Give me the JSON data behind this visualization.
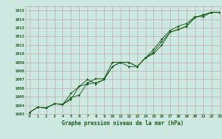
{
  "xlabel": "Graphe pression niveau de la mer (hPa)",
  "ylim": [
    1003,
    1015.5
  ],
  "xlim": [
    -0.5,
    23
  ],
  "yticks": [
    1003,
    1004,
    1005,
    1006,
    1007,
    1008,
    1009,
    1010,
    1011,
    1012,
    1013,
    1014,
    1015
  ],
  "xticks": [
    0,
    1,
    2,
    3,
    4,
    5,
    6,
    7,
    8,
    9,
    10,
    11,
    12,
    13,
    14,
    15,
    16,
    17,
    18,
    19,
    20,
    21,
    22,
    23
  ],
  "bg_color": "#cce8e0",
  "grid_color": "#b8a8a8",
  "line_color": "#1a5c1a",
  "series": [
    [
      1003.2,
      1003.8,
      1003.7,
      1004.2,
      1004.1,
      1004.7,
      1006.2,
      1006.5,
      1006.6,
      1007.0,
      1008.5,
      1009.0,
      1009.0,
      1008.5,
      1009.5,
      1010.0,
      1011.0,
      1012.5,
      1012.8,
      1013.2,
      1014.2,
      1014.5,
      1014.8,
      1014.8
    ],
    [
      1003.2,
      1003.8,
      1003.7,
      1004.2,
      1004.1,
      1005.4,
      1006.2,
      1007.0,
      1006.5,
      1007.0,
      1008.5,
      1009.0,
      1009.0,
      1008.5,
      1009.5,
      1010.2,
      1011.4,
      1012.5,
      1012.8,
      1013.2,
      1014.2,
      1014.5,
      1014.8,
      1014.8
    ],
    [
      1003.2,
      1003.8,
      1003.7,
      1004.2,
      1004.1,
      1004.9,
      1005.2,
      1006.6,
      1007.1,
      1007.1,
      1009.0,
      1009.0,
      1008.5,
      1008.5,
      1009.5,
      1010.5,
      1011.7,
      1012.7,
      1013.2,
      1013.5,
      1014.3,
      1014.3,
      1014.8,
      1014.8
    ]
  ]
}
